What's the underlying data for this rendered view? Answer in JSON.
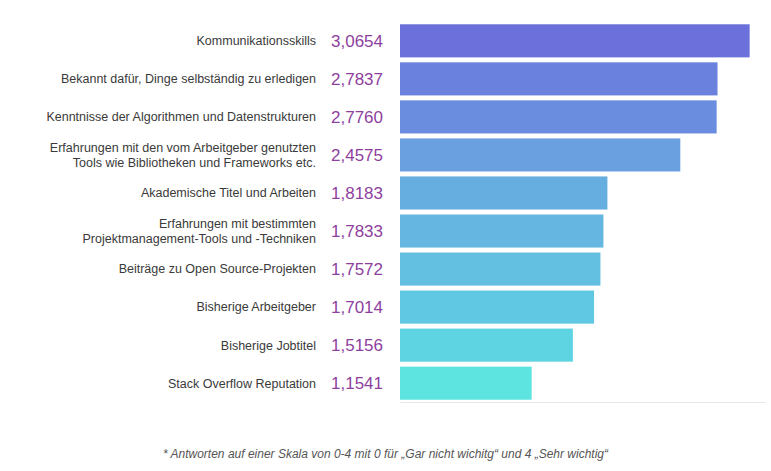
{
  "chart_data": {
    "type": "bar",
    "orientation": "horizontal",
    "categories": [
      "Kommunikationsskills",
      "Bekannt dafür, Dinge selbständig zu erledigen",
      "Kenntnisse der Algorithmen und Datenstrukturen",
      "Erfahrungen mit den vom Arbeitgeber genutzten\nTools wie Bibliotheken und Frameworks etc.",
      "Akademische Titel und Arbeiten",
      "Erfahrungen mit bestimmten\nProjektmanagement-Tools und -Techniken",
      "Beiträge zu Open Source-Projekten",
      "Bisherige Arbeitgeber",
      "Bisherige Jobtitel",
      "Stack Overflow Reputation"
    ],
    "values": [
      3.0654,
      2.7837,
      2.776,
      2.4575,
      1.8183,
      1.7833,
      1.7572,
      1.7014,
      1.5156,
      1.1541
    ],
    "value_labels": [
      "3,0654",
      "2,7837",
      "2,7760",
      "2,4575",
      "1,8183",
      "1,7833",
      "1,7572",
      "1,7014",
      "1,5156",
      "1,1541"
    ],
    "colors": [
      "#6b70da",
      "#6a82dd",
      "#6a8ddf",
      "#6a9fe0",
      "#66aee0",
      "#65b6e0",
      "#63c0e1",
      "#60c8e2",
      "#5ed4e2",
      "#5de3e0"
    ],
    "xlim": [
      0,
      3.2
    ],
    "xticks": [],
    "tick_labels": false,
    "grid": false,
    "data_labels": true,
    "annotations": [
      "* Antworten auf einer Skala von 0-4 mit 0 für „Gar nicht wichitg“ und 4 „Sehr wichtig“"
    ]
  }
}
